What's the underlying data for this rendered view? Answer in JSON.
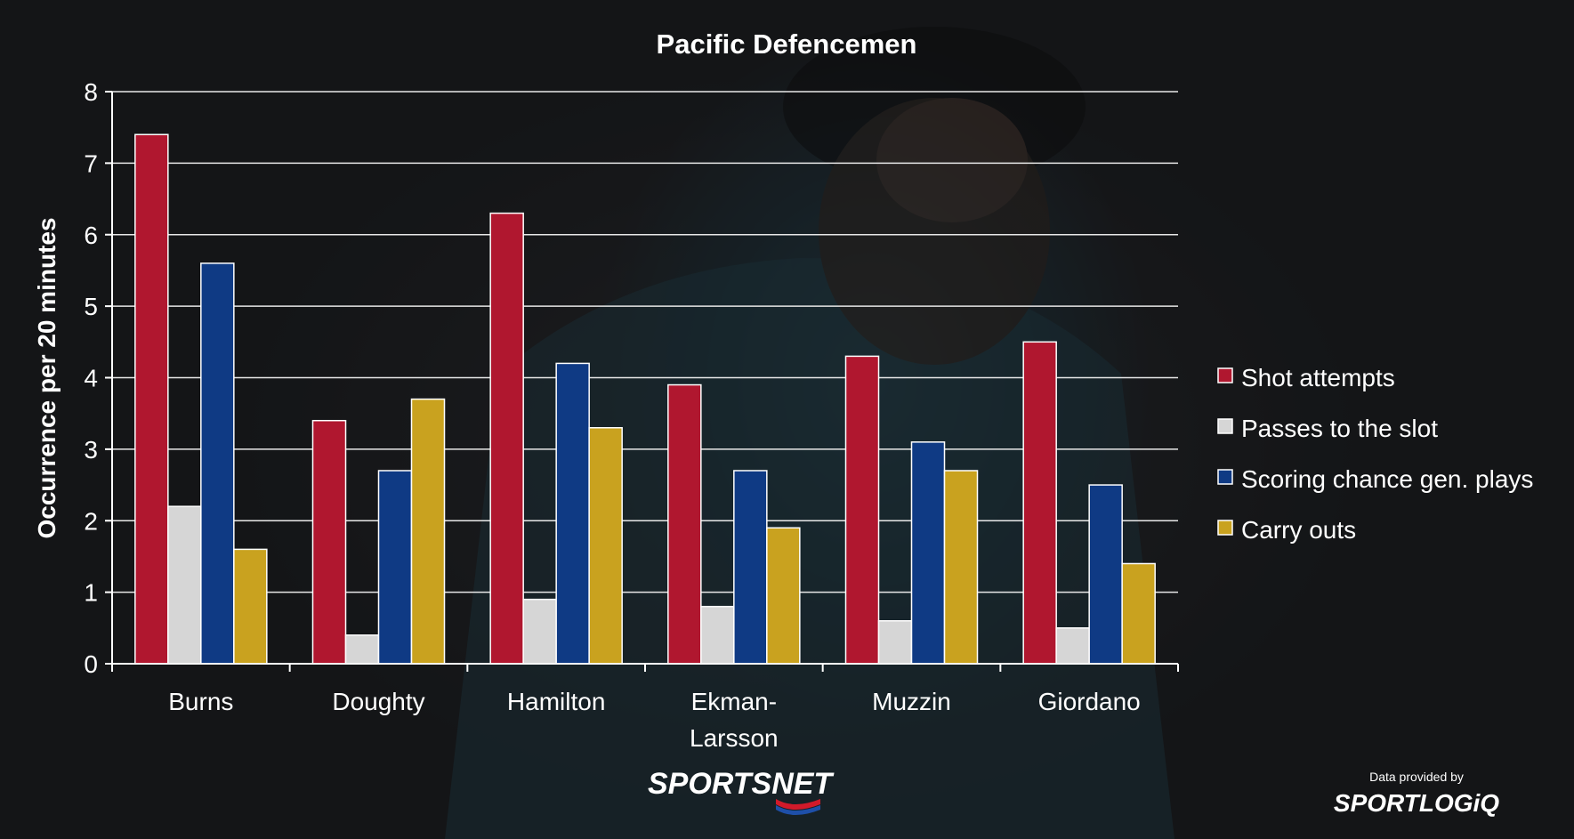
{
  "chart_data": {
    "type": "bar",
    "title": "Pacific Defencemen",
    "ylabel": "Occurrence per 20 minutes",
    "xlabel": "",
    "ylim": [
      0,
      8
    ],
    "yticks": [
      0,
      1,
      2,
      3,
      4,
      5,
      6,
      7,
      8
    ],
    "grid": true,
    "legend_position": "right",
    "categories": [
      [
        "Burns"
      ],
      [
        "Doughty"
      ],
      [
        "Hamilton"
      ],
      [
        "Ekman-",
        "Larsson"
      ],
      [
        "Muzzin"
      ],
      [
        "Giordano"
      ]
    ],
    "series": [
      {
        "name": "Shot attempts",
        "color": "#b0172f",
        "values": [
          7.4,
          3.4,
          6.3,
          3.9,
          4.3,
          4.5
        ]
      },
      {
        "name": "Passes to the slot",
        "color": "#d6d6d6",
        "values": [
          2.2,
          0.4,
          0.9,
          0.8,
          0.6,
          0.5
        ]
      },
      {
        "name": "Scoring chance gen. plays",
        "color": "#0f3a84",
        "values": [
          5.6,
          2.7,
          4.2,
          2.7,
          3.1,
          2.5
        ]
      },
      {
        "name": "Carry outs",
        "color": "#c9a21f",
        "values": [
          1.6,
          3.7,
          3.3,
          1.9,
          2.7,
          1.4
        ]
      }
    ]
  },
  "branding": {
    "logo_left": "SPORTSNET",
    "provider_caption": "Data provided by",
    "provider_logo": "SPORTLOGiQ"
  }
}
